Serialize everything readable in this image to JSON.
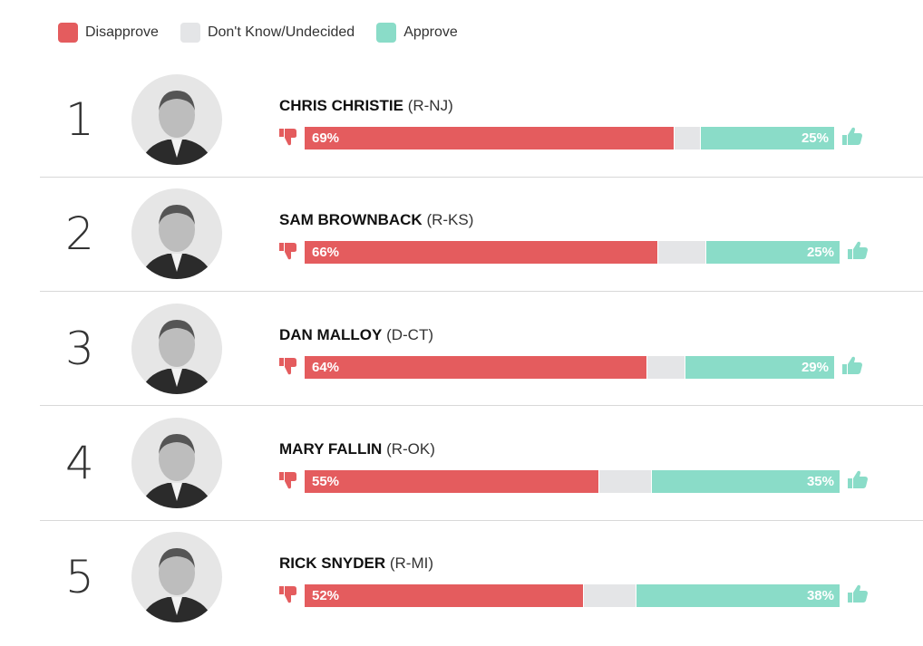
{
  "legend": [
    {
      "label": "Disapprove",
      "color": "#e45c5e"
    },
    {
      "label": "Don't Know/Undecided",
      "color": "#e4e5e7"
    },
    {
      "label": "Approve",
      "color": "#8adcc8"
    }
  ],
  "rows": [
    {
      "rank": "1",
      "name": "CHRIS CHRISTIE",
      "party": "(R-NJ)",
      "disapprove": "69%",
      "approve": "25%",
      "dis_w": 407,
      "und_w": 29,
      "app_w": 148
    },
    {
      "rank": "2",
      "name": "SAM BROWNBACK",
      "party": "(R-KS)",
      "disapprove": "66%",
      "approve": "25%",
      "dis_w": 389,
      "und_w": 53,
      "app_w": 148
    },
    {
      "rank": "3",
      "name": "DAN MALLOY",
      "party": "(D-CT)",
      "disapprove": "64%",
      "approve": "29%",
      "dis_w": 377,
      "und_w": 42,
      "app_w": 165
    },
    {
      "rank": "4",
      "name": "MARY FALLIN",
      "party": "(R-OK)",
      "disapprove": "55%",
      "approve": "35%",
      "dis_w": 324,
      "und_w": 58,
      "app_w": 208
    },
    {
      "rank": "5",
      "name": "RICK SNYDER",
      "party": "(R-MI)",
      "disapprove": "52%",
      "approve": "38%",
      "dis_w": 307,
      "und_w": 58,
      "app_w": 225
    }
  ],
  "chart_data": {
    "type": "bar",
    "orientation": "horizontal-stacked",
    "title": "",
    "categories": [
      "Chris Christie (R-NJ)",
      "Sam Brownback (R-KS)",
      "Dan Malloy (D-CT)",
      "Mary Fallin (R-OK)",
      "Rick Snyder (R-MI)"
    ],
    "series": [
      {
        "name": "Disapprove",
        "color": "#e45c5e",
        "values": [
          69,
          66,
          64,
          55,
          52
        ]
      },
      {
        "name": "Don't Know/Undecided",
        "color": "#e4e5e7",
        "values": [
          6,
          9,
          7,
          10,
          10
        ]
      },
      {
        "name": "Approve",
        "color": "#8adcc8",
        "values": [
          25,
          25,
          29,
          35,
          38
        ]
      }
    ],
    "legend_position": "top-left",
    "xlabel": "",
    "ylabel": "",
    "grid": false
  }
}
